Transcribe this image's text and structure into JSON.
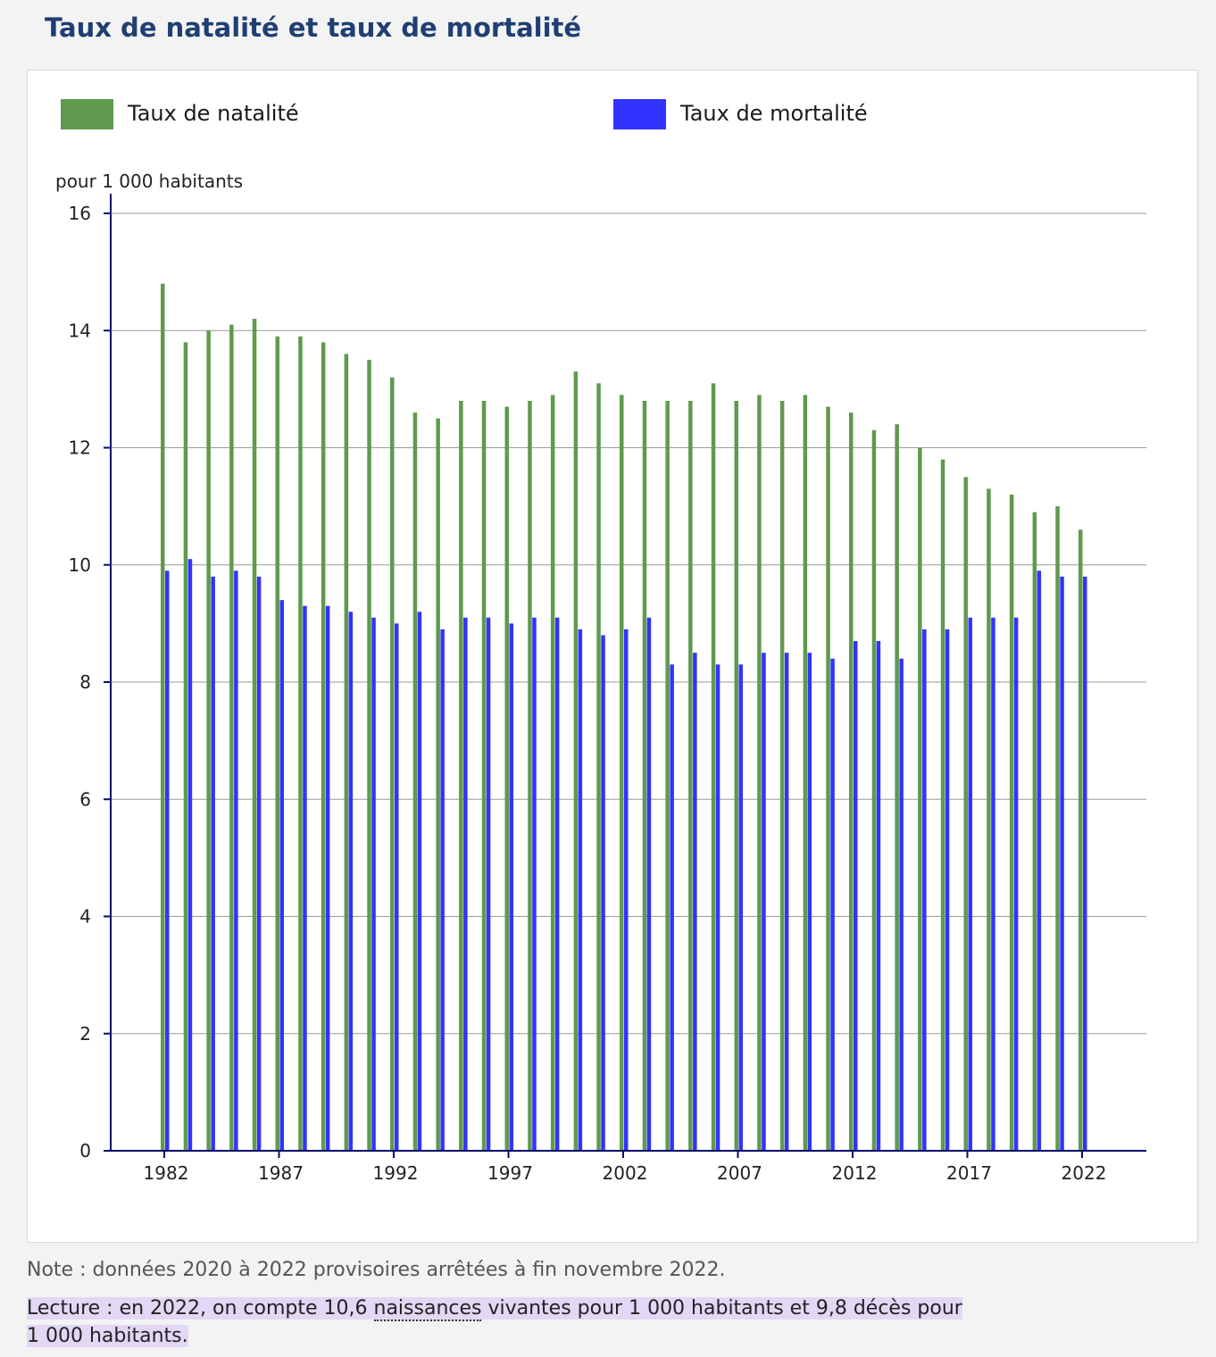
{
  "title": "Taux de natalité et taux de mortalité",
  "note": "Note : données 2020 à 2022 provisoires arrêtées à fin novembre 2022.",
  "lecture": {
    "part1": "Lecture : en 2022, on compte 10,6 ",
    "term": "naissances",
    "part2": " vivantes pour 1 000 habitants et 9,8 décès pour",
    "part3": "1 000 habitants."
  },
  "colors": {
    "natalite": "#5f9a4e",
    "mortalite": "#3333ff",
    "axis": "#0a0a6e",
    "title": "#1f3f73"
  },
  "chart_data": {
    "type": "bar",
    "ylabel": "pour 1 000 habitants",
    "ylim": [
      0,
      16
    ],
    "yticks": [
      0,
      2,
      4,
      6,
      8,
      10,
      12,
      14,
      16
    ],
    "xticks": [
      1982,
      1987,
      1992,
      1997,
      2002,
      2007,
      2012,
      2017,
      2022
    ],
    "grid": true,
    "legend_position": "top",
    "categories": [
      1982,
      1983,
      1984,
      1985,
      1986,
      1987,
      1988,
      1989,
      1990,
      1991,
      1992,
      1993,
      1994,
      1995,
      1996,
      1997,
      1998,
      1999,
      2000,
      2001,
      2002,
      2003,
      2004,
      2005,
      2006,
      2007,
      2008,
      2009,
      2010,
      2011,
      2012,
      2013,
      2014,
      2015,
      2016,
      2017,
      2018,
      2019,
      2020,
      2021,
      2022
    ],
    "series": [
      {
        "name": "Taux de natalité",
        "values": [
          14.8,
          13.8,
          14.0,
          14.1,
          14.2,
          13.9,
          13.9,
          13.8,
          13.6,
          13.5,
          13.2,
          12.6,
          12.5,
          12.8,
          12.8,
          12.7,
          12.8,
          12.9,
          13.3,
          13.1,
          12.9,
          12.8,
          12.8,
          12.8,
          13.1,
          12.8,
          12.9,
          12.8,
          12.9,
          12.7,
          12.6,
          12.3,
          12.4,
          12.0,
          11.8,
          11.5,
          11.3,
          11.2,
          10.9,
          11.0,
          10.6
        ]
      },
      {
        "name": "Taux de mortalité",
        "values": [
          9.9,
          10.1,
          9.8,
          9.9,
          9.8,
          9.4,
          9.3,
          9.3,
          9.2,
          9.1,
          9.0,
          9.2,
          8.9,
          9.1,
          9.1,
          9.0,
          9.1,
          9.1,
          8.9,
          8.8,
          8.9,
          9.1,
          8.3,
          8.5,
          8.3,
          8.3,
          8.5,
          8.5,
          8.5,
          8.4,
          8.7,
          8.7,
          8.4,
          8.9,
          8.9,
          9.1,
          9.1,
          9.1,
          9.9,
          9.8,
          9.8
        ]
      }
    ]
  }
}
